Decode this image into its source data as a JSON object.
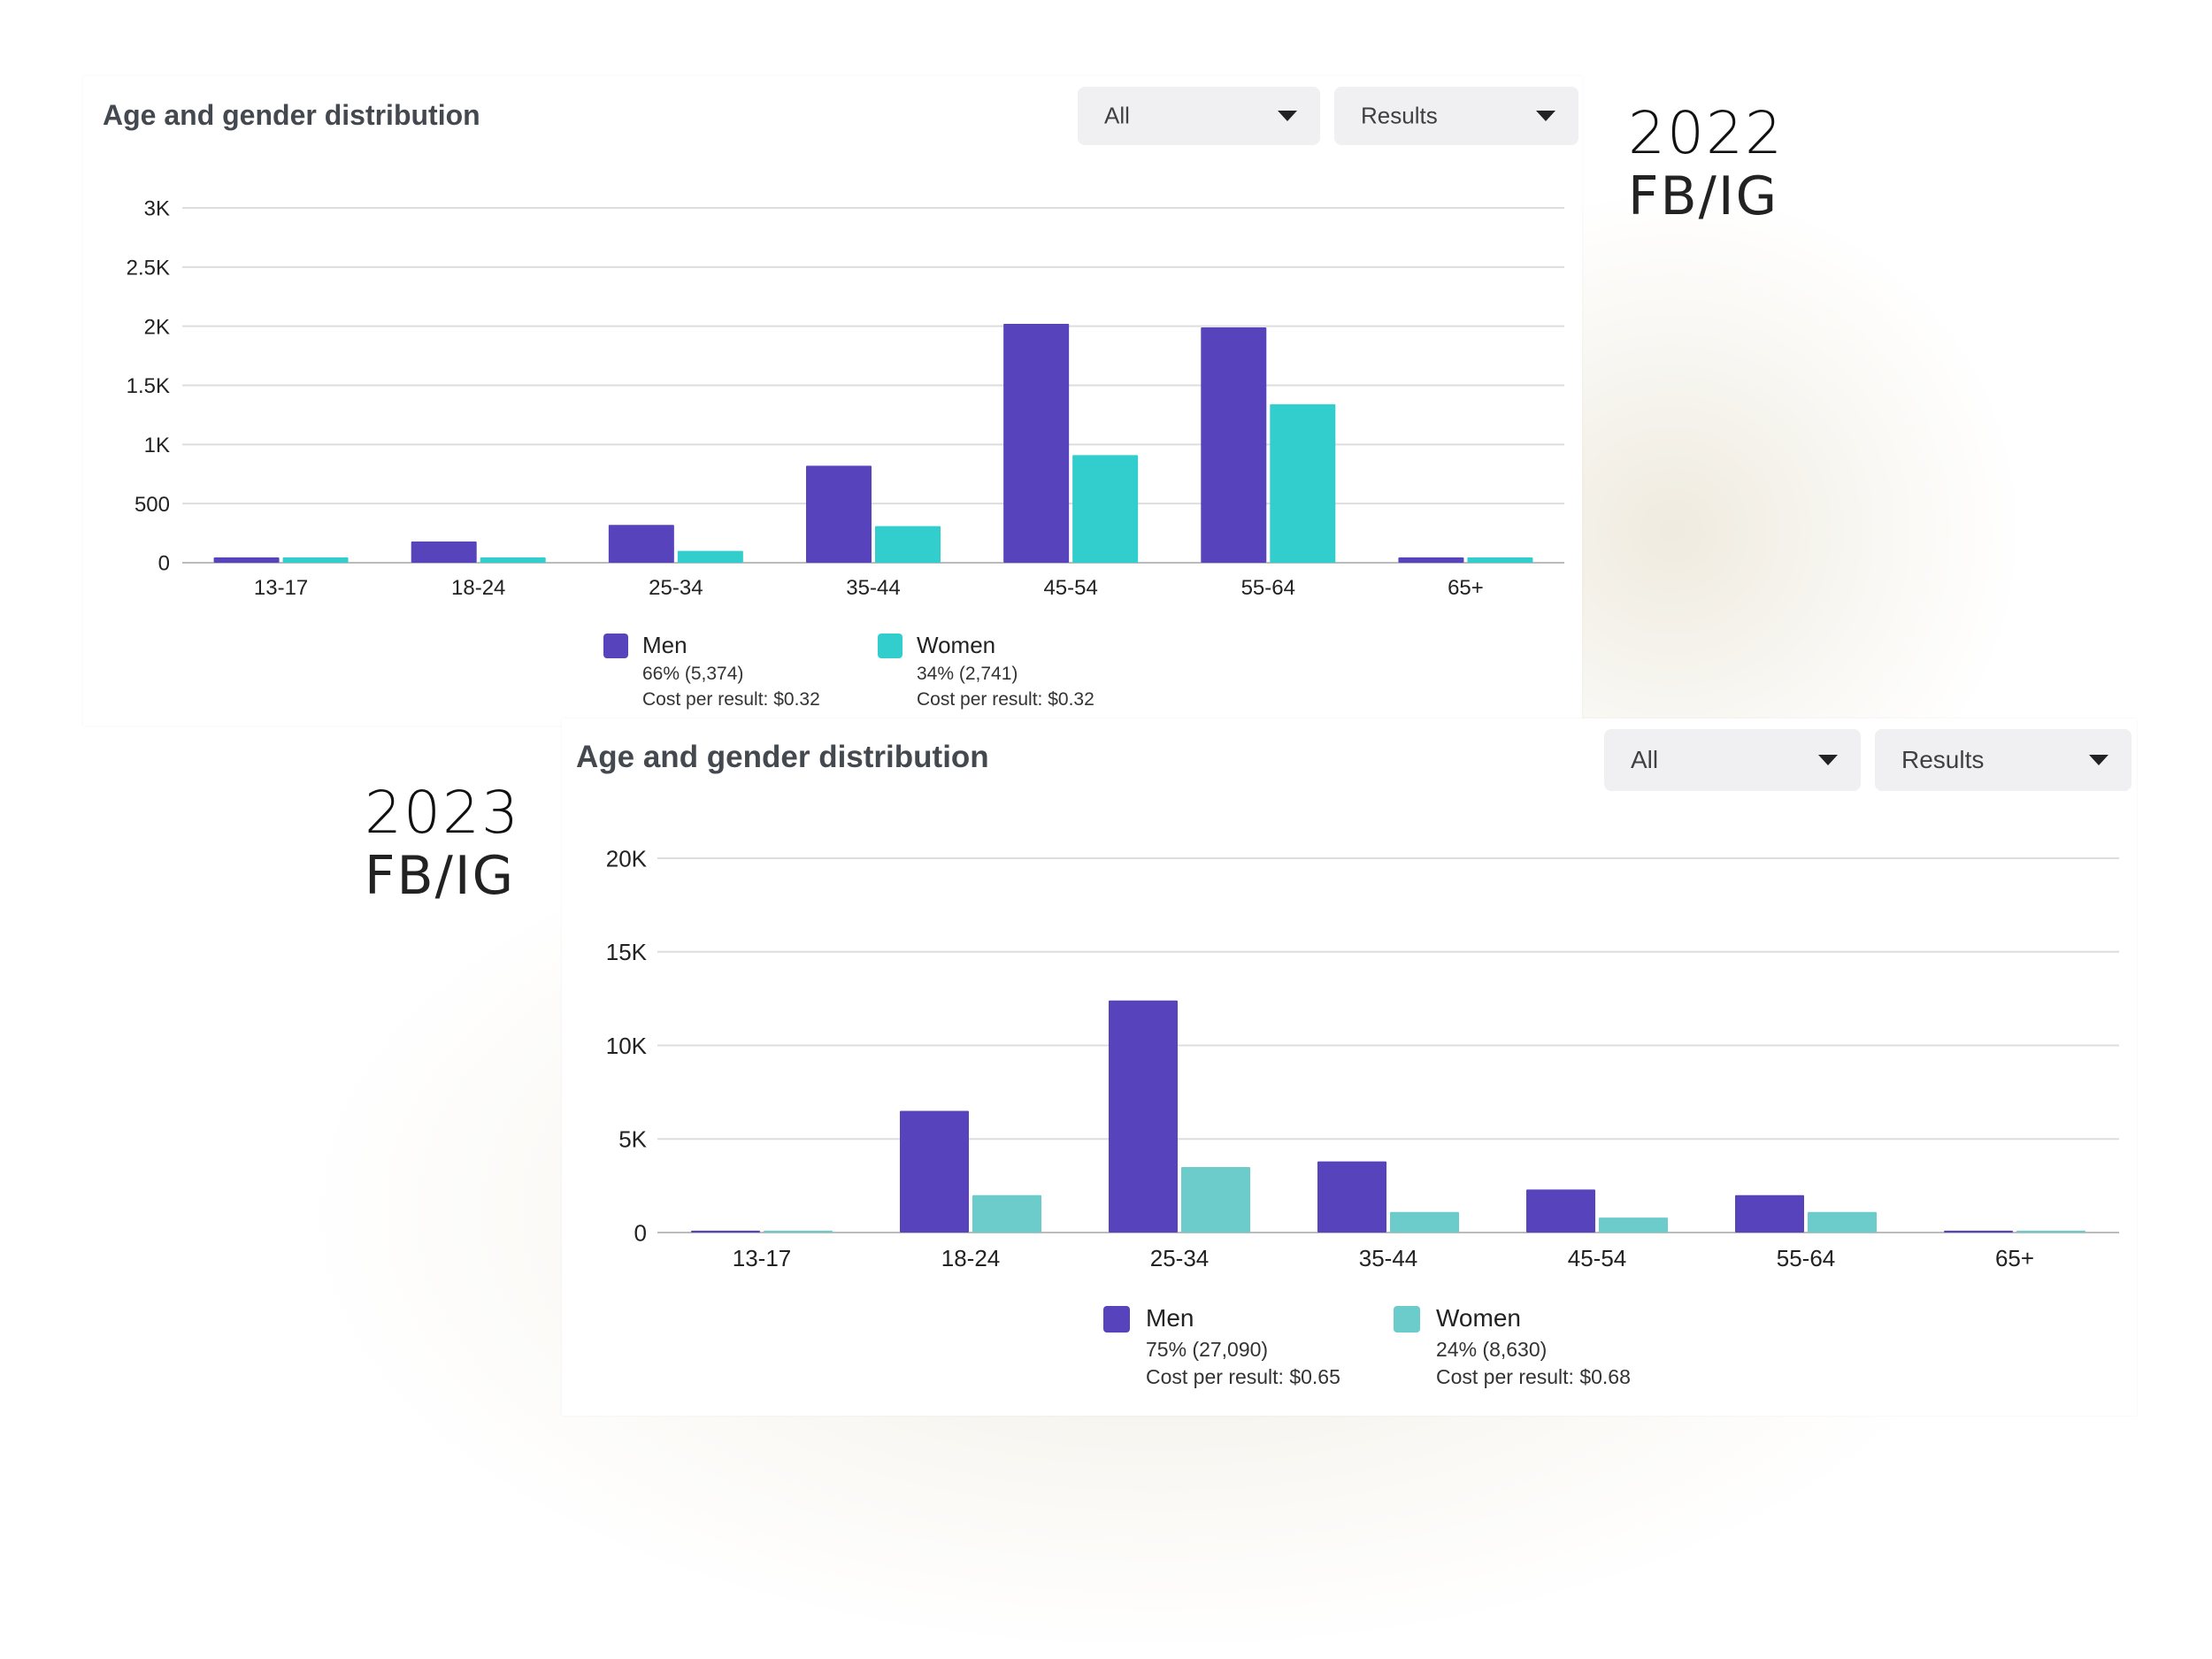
{
  "colors": {
    "men": "#5744bd",
    "women_2022": "#32cdcd",
    "women_2023": "#6ccccc",
    "gridline": "#dddddd",
    "axis_text": "#222222"
  },
  "panels": [
    {
      "title": "Age and gender distribution",
      "filter_all": "All",
      "filter_results": "Results",
      "year": "2022",
      "platform": "FB/IG",
      "legend": [
        {
          "name": "Men",
          "stat": "66% (5,374)",
          "cost": "Cost per result: $0.32"
        },
        {
          "name": "Women",
          "stat": "34% (2,741)",
          "cost": "Cost per result: $0.32"
        }
      ]
    },
    {
      "title": "Age and gender distribution",
      "filter_all": "All",
      "filter_results": "Results",
      "year": "2023",
      "platform": "FB/IG",
      "legend": [
        {
          "name": "Men",
          "stat": "75% (27,090)",
          "cost": "Cost per result: $0.65"
        },
        {
          "name": "Women",
          "stat": "24% (8,630)",
          "cost": "Cost per result: $0.68"
        }
      ]
    }
  ],
  "chart_data": [
    {
      "type": "bar",
      "title": "Age and gender distribution",
      "categories": [
        "13-17",
        "18-24",
        "25-34",
        "35-44",
        "45-54",
        "55-64",
        "65+"
      ],
      "series": [
        {
          "name": "Men",
          "values": [
            45,
            180,
            320,
            820,
            2020,
            1990,
            45
          ]
        },
        {
          "name": "Women",
          "values": [
            45,
            45,
            100,
            310,
            910,
            1340,
            45
          ]
        }
      ],
      "ylim": [
        0,
        3000
      ],
      "yticks": [
        0,
        500,
        1000,
        1500,
        2000,
        2500,
        3000
      ],
      "ytick_labels": [
        "0",
        "500",
        "1K",
        "1.5K",
        "2K",
        "2.5K",
        "3K"
      ],
      "grid": true,
      "legend_position": "bottom"
    },
    {
      "type": "bar",
      "title": "Age and gender distribution",
      "categories": [
        "13-17",
        "18-24",
        "25-34",
        "35-44",
        "45-54",
        "55-64",
        "65+"
      ],
      "series": [
        {
          "name": "Men",
          "values": [
            100,
            6500,
            12400,
            3800,
            2300,
            2000,
            100
          ]
        },
        {
          "name": "Women",
          "values": [
            100,
            2000,
            3500,
            1100,
            800,
            1100,
            100
          ]
        }
      ],
      "ylim": [
        0,
        20000
      ],
      "yticks": [
        0,
        5000,
        10000,
        15000,
        20000
      ],
      "ytick_labels": [
        "0",
        "5K",
        "10K",
        "15K",
        "20K"
      ],
      "grid": true,
      "legend_position": "bottom"
    }
  ]
}
